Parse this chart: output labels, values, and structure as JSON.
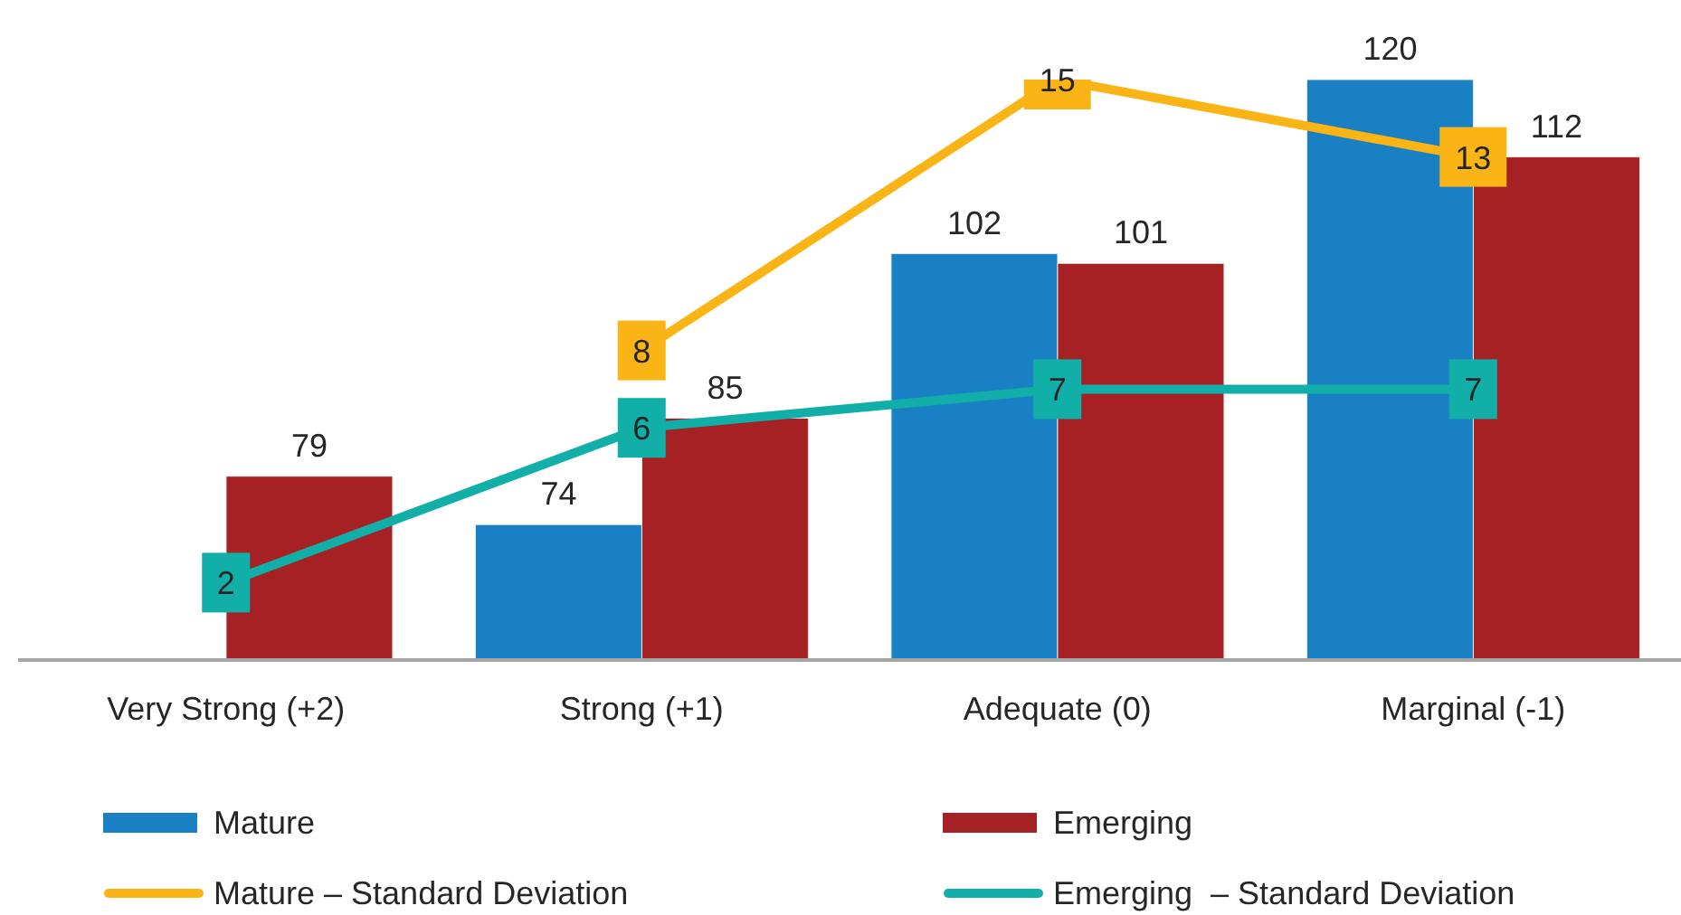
{
  "chart_data": {
    "type": "bar",
    "categories": [
      "Very Strong (+2)",
      "Strong (+1)",
      "Adequate (0)",
      "Marginal (-1)"
    ],
    "series": [
      {
        "name": "Mature",
        "color": "#1a80c4",
        "values": [
          null,
          74,
          102,
          120
        ]
      },
      {
        "name": "Emerging",
        "color": "#a52124",
        "values": [
          79,
          85,
          101,
          112
        ]
      },
      {
        "name": "Mature – Standard Deviation",
        "type": "line",
        "axis": "y2",
        "color": "#fbb416",
        "values": [
          null,
          8,
          15,
          13
        ]
      },
      {
        "name": "Emerging  – Standard Deviation",
        "type": "line",
        "axis": "y2",
        "color": "#12afa9",
        "values": [
          2,
          6,
          7,
          7
        ]
      }
    ],
    "ylim": [
      60,
      120
    ],
    "y2lim": [
      0,
      15
    ],
    "tick_labels": "x",
    "data_labels": true,
    "legend": "bottom",
    "marker": "square",
    "line_style": "solid"
  }
}
